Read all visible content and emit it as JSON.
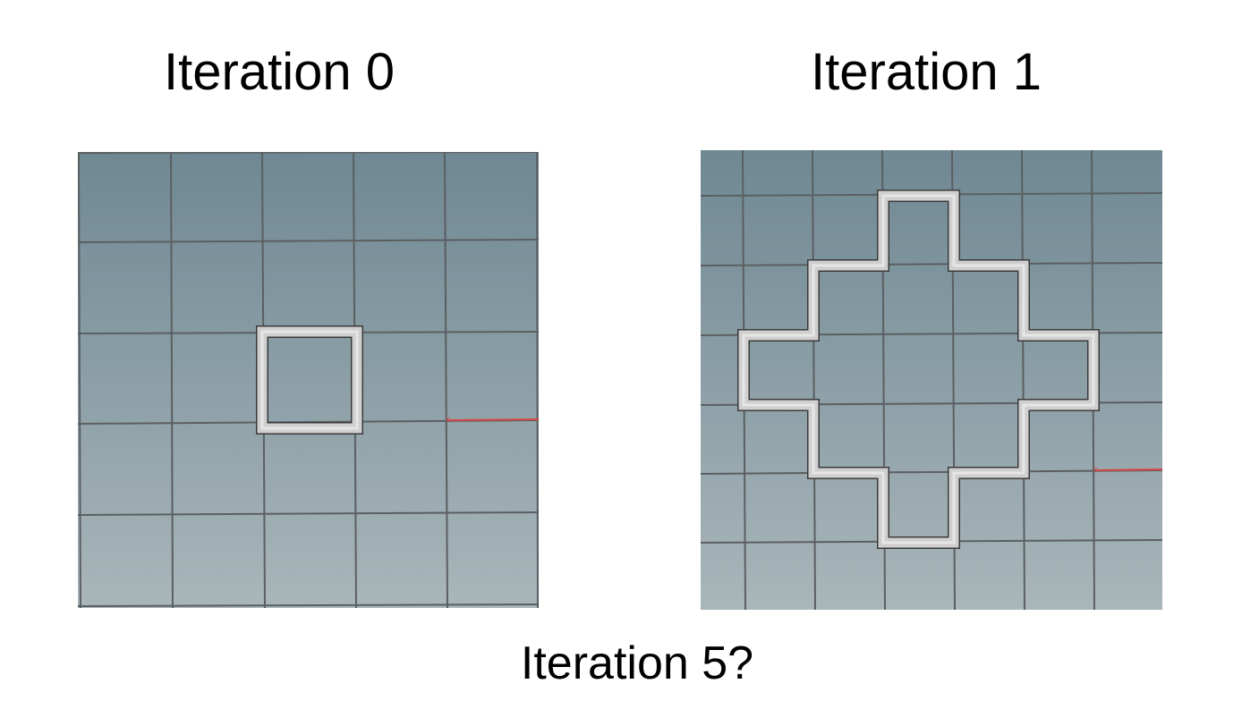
{
  "panels": [
    {
      "title": "Iteration 0"
    },
    {
      "title": "Iteration 1"
    }
  ],
  "question": "Iteration 5?",
  "colors": {
    "background_top": "#6f8893",
    "background_bottom": "#a9b6ba",
    "grid_line": "#5b5f61",
    "tube": "#c9c9c9",
    "tube_shadow": "#3a3a3a",
    "axis": "#d94646"
  }
}
